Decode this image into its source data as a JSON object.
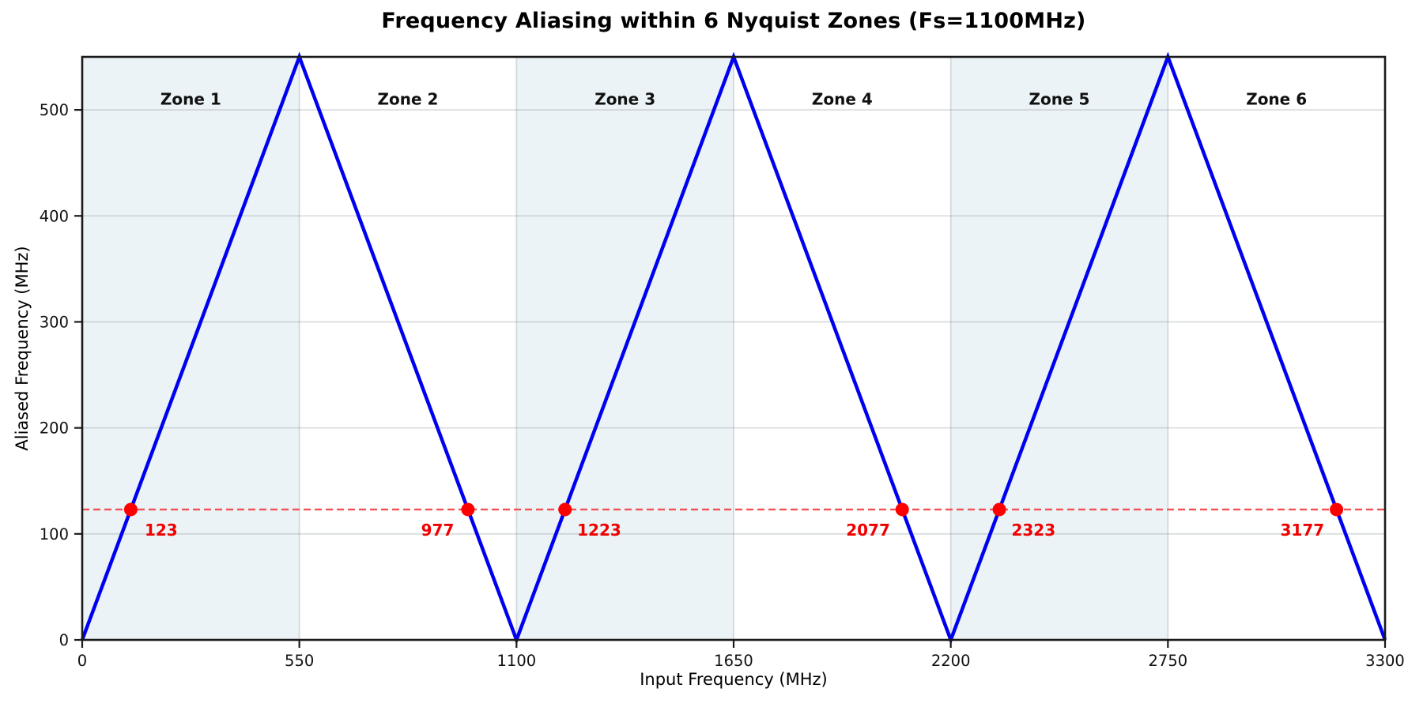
{
  "figure": {
    "background_color": "#ffffff",
    "text_color": "#000000"
  },
  "chart_data": {
    "type": "line",
    "title": "Frequency Aliasing within 6 Nyquist Zones (Fs=1100MHz)",
    "xlabel": "Input Frequency (MHz)",
    "ylabel": "Aliased Frequency (MHz)",
    "xlim": [
      0,
      3300
    ],
    "ylim": [
      0,
      550
    ],
    "xticks": [
      0,
      550,
      1100,
      1650,
      2200,
      2750,
      3300
    ],
    "yticks": [
      0,
      100,
      200,
      300,
      400,
      500
    ],
    "grid": true,
    "grid_color": "rgba(140,150,155,0.32)",
    "spine_color": "#1a1a1a",
    "zone_fill_color": "#ebf3f7",
    "zone_label_y": 510,
    "zones": [
      {
        "label": "Zone 1",
        "x_start": 0,
        "x_end": 550,
        "shaded": true
      },
      {
        "label": "Zone 2",
        "x_start": 550,
        "x_end": 1100,
        "shaded": false
      },
      {
        "label": "Zone 3",
        "x_start": 1100,
        "x_end": 1650,
        "shaded": true
      },
      {
        "label": "Zone 4",
        "x_start": 1650,
        "x_end": 2200,
        "shaded": false
      },
      {
        "label": "Zone 5",
        "x_start": 2200,
        "x_end": 2750,
        "shaded": true
      },
      {
        "label": "Zone 6",
        "x_start": 2750,
        "x_end": 3300,
        "shaded": false
      }
    ],
    "series": [
      {
        "name": "aliased-frequency",
        "color": "#0000f0",
        "line_width": 4.5,
        "points": [
          [
            0,
            0
          ],
          [
            550,
            550
          ],
          [
            1100,
            0
          ],
          [
            1650,
            550
          ],
          [
            2200,
            0
          ],
          [
            2750,
            550
          ],
          [
            3300,
            0
          ]
        ]
      }
    ],
    "reference_line": {
      "y": 123,
      "color": "#f25252",
      "style": "dashed"
    },
    "markers": {
      "color": "#ff0000",
      "label_color": "#f00000",
      "points": [
        {
          "x": 123,
          "y": 123,
          "label": "123",
          "label_side": "right"
        },
        {
          "x": 977,
          "y": 123,
          "label": "977",
          "label_side": "left"
        },
        {
          "x": 1223,
          "y": 123,
          "label": "1223",
          "label_side": "right"
        },
        {
          "x": 2077,
          "y": 123,
          "label": "2077",
          "label_side": "left"
        },
        {
          "x": 2323,
          "y": 123,
          "label": "2323",
          "label_side": "right"
        },
        {
          "x": 3177,
          "y": 123,
          "label": "3177",
          "label_side": "left"
        }
      ]
    }
  }
}
